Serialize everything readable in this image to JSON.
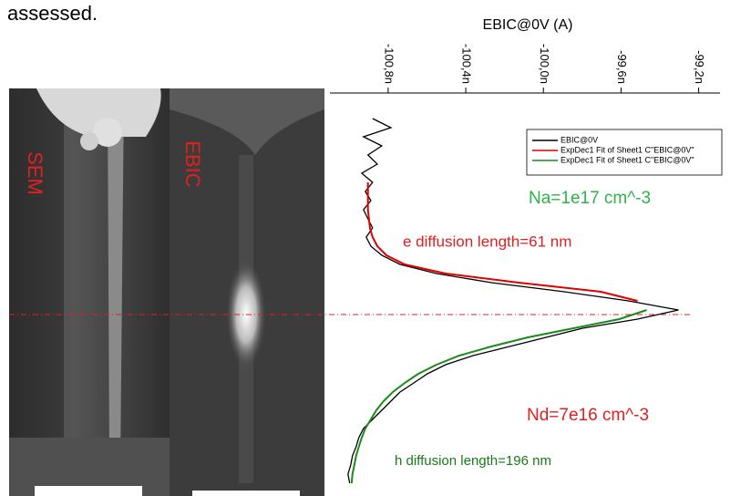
{
  "page_text": "assessed.",
  "image_labels": [
    "SEM",
    "EBIC"
  ],
  "chart_data": {
    "type": "line",
    "x_label": "EBIC@0V (A)",
    "xlim": [
      -1.011e-07,
      -9.909e-08
    ],
    "xticks": [
      {
        "value": -1.008e-07,
        "label": "-100,8n"
      },
      {
        "value": -1.004e-07,
        "label": "-100,4n"
      },
      {
        "value": -1e-07,
        "label": "-100,0n"
      },
      {
        "value": -9.96e-08,
        "label": "-99,6n"
      },
      {
        "value": -9.92e-08,
        "label": "-99,2n"
      }
    ],
    "legend_position": "top-right",
    "categories": [
      null,
      null,
      null,
      null,
      null,
      null,
      null,
      null,
      null,
      null,
      null,
      null,
      null,
      null,
      null,
      null,
      null,
      null,
      null,
      null,
      null,
      null,
      null,
      null,
      null,
      null,
      null,
      null,
      null,
      null,
      null,
      null,
      null,
      null,
      null,
      null,
      null,
      null,
      null,
      null,
      null
    ],
    "series": [
      {
        "name": "EBIC@0V",
        "color": "#000000",
        "values": [
          -1.0088e-07,
          -1.00786e-07,
          -1.00927e-07,
          -1.00833e-07,
          -1.00904e-07,
          -1.00856e-07,
          -1.00936e-07,
          -1.0088e-07,
          -1.00918e-07,
          -1.00889e-07,
          -1.00927e-07,
          -1.00904e-07,
          -1.0088e-07,
          -1.00913e-07,
          -1.00889e-07,
          -1.00833e-07,
          -1.00739e-07,
          -1.00551e-07,
          -1.00268e-07,
          -9.9892e-08,
          -9.9562e-08,
          -9.9304e-08,
          -9.9515e-08,
          -9.9798e-08,
          -9.9986e-08,
          -1.00174e-07,
          -1.00362e-07,
          -1.00504e-07,
          -1.00598e-07,
          -1.00668e-07,
          -1.00739e-07,
          -1.00786e-07,
          -1.00833e-07,
          -1.0088e-07,
          -1.00927e-07,
          -1.00951e-07,
          -1.00965e-07,
          -1.00984e-07,
          -1.00993e-07,
          -1.01007e-07,
          -1.00998e-07
        ]
      },
      {
        "name": "ExpDec1 Fit of Sheet1 C\"EBIC@0V\"",
        "color": "#e00000",
        "values": [
          null,
          null,
          null,
          null,
          null,
          null,
          null,
          -1.00904e-07,
          -1.00904e-07,
          -1.00904e-07,
          -1.00904e-07,
          -1.00899e-07,
          -1.00894e-07,
          -1.0088e-07,
          -1.00856e-07,
          -1.00809e-07,
          -1.00715e-07,
          -1.00504e-07,
          -1.00127e-07,
          -9.9704e-08,
          -9.9515e-08,
          null,
          null,
          null,
          null,
          null,
          null,
          null,
          null,
          null,
          null,
          null,
          null,
          null,
          null,
          null,
          null,
          null,
          null,
          null,
          null
        ]
      },
      {
        "name": "ExpDec1 Fit of Sheet1 C\"EBIC@0V\"",
        "color": "#1a8a1a",
        "values": [
          null,
          null,
          null,
          null,
          null,
          null,
          null,
          null,
          null,
          null,
          null,
          null,
          null,
          null,
          null,
          null,
          null,
          null,
          null,
          null,
          null,
          -9.9468e-08,
          -9.9609e-08,
          -9.9845e-08,
          -1.0008e-07,
          -1.00268e-07,
          -1.00433e-07,
          -1.00551e-07,
          -1.00645e-07,
          -1.00715e-07,
          -1.00776e-07,
          -1.00824e-07,
          -1.00861e-07,
          -1.00889e-07,
          -1.00918e-07,
          -1.00936e-07,
          -1.00951e-07,
          -1.00965e-07,
          -1.00974e-07,
          -1.00984e-07,
          -1.00988e-07
        ]
      }
    ],
    "annotations": [
      {
        "text": "Na=1e17 cm^-3",
        "color": "#2db34a"
      },
      {
        "text": "e diffusion length=61 nm",
        "color": "#e02020"
      },
      {
        "text": "Nd=7e16 cm^-3",
        "color": "#e02020"
      },
      {
        "text": "h diffusion length=196 nm",
        "color": "#1a7a1a"
      }
    ]
  }
}
